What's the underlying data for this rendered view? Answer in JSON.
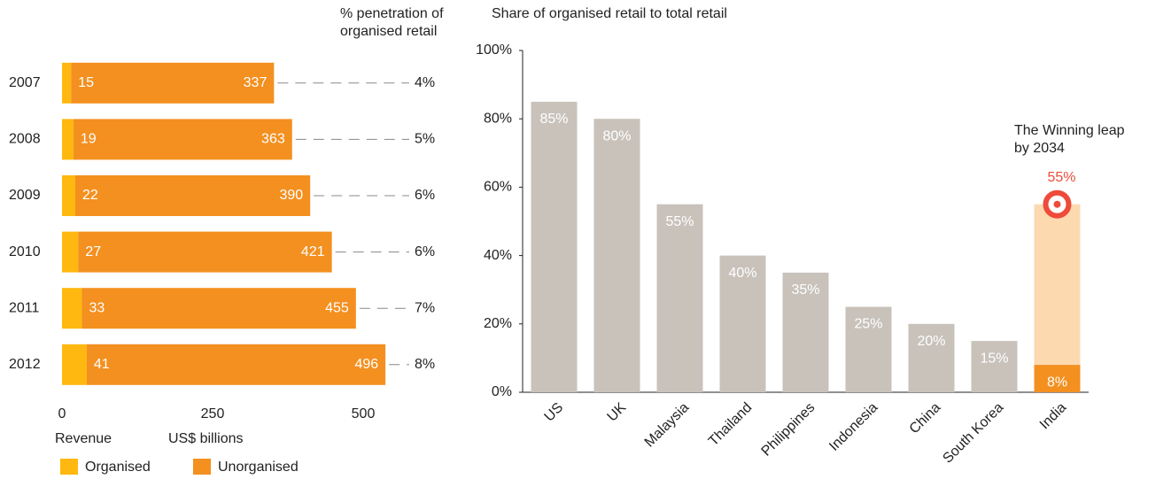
{
  "chart_data": [
    {
      "type": "hbar-stacked",
      "categories": [
        "2007",
        "2008",
        "2009",
        "2010",
        "2011",
        "2012"
      ],
      "series": [
        {
          "name": "Organised",
          "color": "#ffb80f",
          "values": [
            15,
            19,
            22,
            27,
            33,
            41
          ]
        },
        {
          "name": "Unorganised",
          "color": "#f39020",
          "values": [
            337,
            363,
            390,
            421,
            455,
            496
          ]
        }
      ],
      "xlim": [
        0,
        500
      ],
      "xticks": [
        0,
        250,
        500
      ],
      "xlabel": "Revenue",
      "xunit": "US$ billions",
      "penetration": {
        "title": "% penetration of organised retail",
        "values": [
          4,
          5,
          6,
          6,
          7,
          8
        ],
        "value_labels": [
          "4%",
          "5%",
          "6%",
          "6%",
          "7%",
          "8%"
        ]
      }
    },
    {
      "type": "bar",
      "title": "Share of organised retail to total retail",
      "categories": [
        "US",
        "UK",
        "Malaysia",
        "Thailand",
        "Philippines",
        "Indonesia",
        "China",
        "South Korea",
        "India"
      ],
      "values": [
        85,
        80,
        55,
        40,
        35,
        25,
        20,
        15,
        8
      ],
      "value_labels": [
        "85%",
        "80%",
        "55%",
        "40%",
        "35%",
        "25%",
        "20%",
        "15%",
        "8%"
      ],
      "colors": [
        "#c8c2bb",
        "#c8c2bb",
        "#c8c2bb",
        "#c8c2bb",
        "#c8c2bb",
        "#c8c2bb",
        "#c8c2bb",
        "#c8c2bb",
        "#f39020"
      ],
      "ylim": [
        0,
        100
      ],
      "yticks": [
        {
          "value": 0,
          "label": "0%"
        },
        {
          "value": 20,
          "label": "20%"
        },
        {
          "value": 40,
          "label": "40%"
        },
        {
          "value": 60,
          "label": "60%"
        },
        {
          "value": 80,
          "label": "80%"
        },
        {
          "value": 100,
          "label": "100%"
        }
      ],
      "annotation": {
        "text": "The Winning leap by 2034",
        "value": 55,
        "label": "55%",
        "color": "#fdd9b0",
        "marker_color": "#ee4b3a"
      }
    }
  ]
}
